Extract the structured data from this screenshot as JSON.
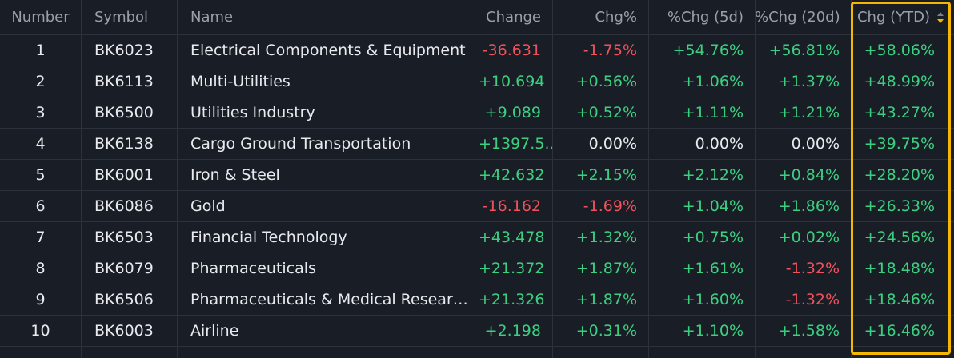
{
  "table": {
    "header": [
      "Number",
      "Symbol",
      "Name",
      "Change",
      "Chg%",
      "%Chg (5d)",
      "%Chg (20d)",
      "Chg (YTD)"
    ],
    "rows": [
      [
        "1",
        "BK6023",
        "Electrical Components & Equipment",
        "-36.631",
        "-1.75%",
        "+54.76%",
        "+56.81%",
        "+58.06%"
      ],
      [
        "2",
        "BK6113",
        "Multi-Utilities",
        "+10.694",
        "+0.56%",
        "+1.06%",
        "+1.37%",
        "+48.99%"
      ],
      [
        "3",
        "BK6500",
        "Utilities Industry",
        "+9.089",
        "+0.52%",
        "+1.11%",
        "+1.21%",
        "+43.27%"
      ],
      [
        "4",
        "BK6138",
        "Cargo Ground Transportation",
        "+1397.5…",
        "0.00%",
        "0.00%",
        "0.00%",
        "+39.75%"
      ],
      [
        "5",
        "BK6001",
        "Iron & Steel",
        "+42.632",
        "+2.15%",
        "+2.12%",
        "+0.84%",
        "+28.20%"
      ],
      [
        "6",
        "BK6086",
        "Gold",
        "-16.162",
        "-1.69%",
        "+1.04%",
        "+1.86%",
        "+26.33%"
      ],
      [
        "7",
        "BK6503",
        "Financial Technology",
        "+43.478",
        "+1.32%",
        "+0.75%",
        "+0.02%",
        "+24.56%"
      ],
      [
        "8",
        "BK6079",
        "Pharmaceuticals",
        "+21.372",
        "+1.87%",
        "+1.61%",
        "-1.32%",
        "+18.48%"
      ],
      [
        "9",
        "BK6506",
        "Pharmaceuticals & Medical Resear…",
        "+21.326",
        "+1.87%",
        "+1.60%",
        "-1.32%",
        "+18.46%"
      ],
      [
        "10",
        "BK6003",
        "Airline",
        "+2.198",
        "+0.31%",
        "+1.10%",
        "+1.58%",
        "+16.46%"
      ]
    ]
  }
}
